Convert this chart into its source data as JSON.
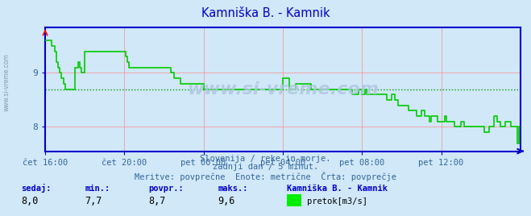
{
  "title": "Kamniška B. - Kamnik",
  "title_color": "#0000cc",
  "bg_color": "#d0e8f8",
  "plot_bg_color": "#d0e8f8",
  "line_color": "#00cc00",
  "avg_line_color": "#009900",
  "avg_value": 8.7,
  "y_ticks": [
    8.0,
    9.0
  ],
  "ylim": [
    7.55,
    9.85
  ],
  "grid_color": "#ff8888",
  "axis_color": "#0000cc",
  "tick_color": "#336699",
  "watermark": "www.si-vreme.com",
  "watermark_color": "#b0c8e0",
  "subtitle1": "Slovenija / reke in morje.",
  "subtitle2": "zadnji dan / 5 minut.",
  "subtitle3": "Meritve: povprečne  Enote: metrične  Črta: povprečje",
  "subtitle_color": "#336699",
  "stat_label_color": "#0000cc",
  "sedaj": "8,0",
  "min_val": "7,7",
  "povpr": "8,7",
  "maks": "9,6",
  "legend_label": "pretok[m3/s]",
  "legend_color": "#00ee00",
  "x_labels": [
    "čet 16:00",
    "čet 20:00",
    "pet 00:00",
    "pet 04:00",
    "pet 08:00",
    "pet 12:00"
  ],
  "x_positions": [
    0,
    48,
    96,
    144,
    192,
    240
  ],
  "total_points": 288,
  "flow_data": [
    9.6,
    9.6,
    9.6,
    9.6,
    9.5,
    9.5,
    9.4,
    9.2,
    9.1,
    9.0,
    8.9,
    8.8,
    8.7,
    8.7,
    8.7,
    8.7,
    8.7,
    8.7,
    9.1,
    9.1,
    9.2,
    9.1,
    9.0,
    9.0,
    9.4,
    9.4,
    9.4,
    9.4,
    9.4,
    9.4,
    9.4,
    9.4,
    9.4,
    9.4,
    9.4,
    9.4,
    9.4,
    9.4,
    9.4,
    9.4,
    9.4,
    9.4,
    9.4,
    9.4,
    9.4,
    9.4,
    9.4,
    9.4,
    9.4,
    9.3,
    9.2,
    9.1,
    9.1,
    9.1,
    9.1,
    9.1,
    9.1,
    9.1,
    9.1,
    9.1,
    9.1,
    9.1,
    9.1,
    9.1,
    9.1,
    9.1,
    9.1,
    9.1,
    9.1,
    9.1,
    9.1,
    9.1,
    9.1,
    9.1,
    9.1,
    9.1,
    9.0,
    9.0,
    8.9,
    8.9,
    8.9,
    8.9,
    8.8,
    8.8,
    8.8,
    8.8,
    8.8,
    8.8,
    8.8,
    8.8,
    8.8,
    8.8,
    8.8,
    8.8,
    8.8,
    8.8,
    8.7,
    8.7,
    8.7,
    8.7,
    8.7,
    8.7,
    8.7,
    8.7,
    8.7,
    8.7,
    8.7,
    8.7,
    8.7,
    8.7,
    8.7,
    8.7,
    8.7,
    8.7,
    8.7,
    8.7,
    8.7,
    8.7,
    8.7,
    8.7,
    8.7,
    8.7,
    8.7,
    8.7,
    8.7,
    8.7,
    8.7,
    8.7,
    8.7,
    8.7,
    8.7,
    8.7,
    8.7,
    8.7,
    8.7,
    8.7,
    8.7,
    8.7,
    8.7,
    8.7,
    8.7,
    8.7,
    8.7,
    8.7,
    8.9,
    8.9,
    8.9,
    8.9,
    8.7,
    8.7,
    8.7,
    8.7,
    8.8,
    8.8,
    8.8,
    8.8,
    8.8,
    8.8,
    8.8,
    8.8,
    8.8,
    8.7,
    8.7,
    8.7,
    8.7,
    8.7,
    8.7,
    8.7,
    8.7,
    8.7,
    8.7,
    8.7,
    8.7,
    8.7,
    8.7,
    8.7,
    8.7,
    8.7,
    8.7,
    8.7,
    8.7,
    8.7,
    8.7,
    8.7,
    8.7,
    8.7,
    8.6,
    8.6,
    8.6,
    8.6,
    8.7,
    8.7,
    8.6,
    8.6,
    8.7,
    8.6,
    8.6,
    8.6,
    8.6,
    8.6,
    8.6,
    8.6,
    8.6,
    8.6,
    8.6,
    8.6,
    8.6,
    8.5,
    8.5,
    8.5,
    8.6,
    8.6,
    8.5,
    8.5,
    8.4,
    8.4,
    8.4,
    8.4,
    8.4,
    8.4,
    8.3,
    8.3,
    8.3,
    8.3,
    8.3,
    8.2,
    8.2,
    8.2,
    8.3,
    8.3,
    8.2,
    8.2,
    8.2,
    8.1,
    8.2,
    8.2,
    8.2,
    8.2,
    8.1,
    8.1,
    8.1,
    8.1,
    8.2,
    8.1,
    8.1,
    8.1,
    8.1,
    8.1,
    8.0,
    8.0,
    8.0,
    8.0,
    8.1,
    8.1,
    8.0,
    8.0,
    8.0,
    8.0,
    8.0,
    8.0,
    8.0,
    8.0,
    8.0,
    8.0,
    8.0,
    8.0,
    7.9,
    7.9,
    7.9,
    8.0,
    8.0,
    8.0,
    8.2,
    8.2,
    8.1,
    8.1,
    8.0,
    8.0,
    8.0,
    8.1,
    8.1,
    8.1,
    8.0,
    8.0,
    8.0,
    8.0,
    7.7,
    8.0
  ]
}
